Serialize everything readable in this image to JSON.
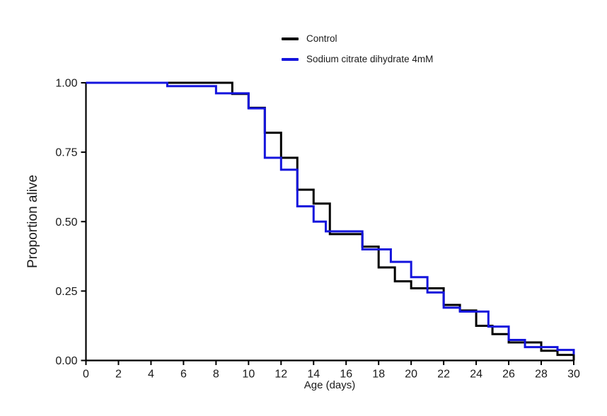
{
  "page": {
    "background": "#ffffff"
  },
  "legend": {
    "items": [
      {
        "label": "Control",
        "color": "#000000"
      },
      {
        "label": "Sodium citrate dihydrate 4mM",
        "color": "#1414dd"
      }
    ]
  },
  "chart_data": {
    "type": "line",
    "subtype": "kaplan-meier-step",
    "title": "",
    "xlabel": "Age (days)",
    "ylabel": "Proportion alive",
    "xlim": [
      0,
      30
    ],
    "ylim": [
      0,
      1
    ],
    "x_ticks": [
      0,
      2,
      4,
      6,
      8,
      10,
      12,
      14,
      16,
      18,
      20,
      22,
      24,
      26,
      28,
      30
    ],
    "y_ticks": [
      {
        "label": "1.00",
        "value": 1.0
      },
      {
        "label": "0.75",
        "value": 0.75
      },
      {
        "label": "0.50",
        "value": 0.5
      },
      {
        "label": "0.25",
        "value": 0.25
      },
      {
        "label": "0.00",
        "value": 0.0
      }
    ],
    "grid": false,
    "legend_position": "top-center",
    "series": [
      {
        "name": "Control",
        "color": "#000000",
        "stroke_width": 3,
        "points": [
          [
            0,
            1.0
          ],
          [
            9,
            0.96
          ],
          [
            10,
            0.91
          ],
          [
            11,
            0.82
          ],
          [
            12,
            0.73
          ],
          [
            13,
            0.615
          ],
          [
            14,
            0.565
          ],
          [
            15,
            0.455
          ],
          [
            17,
            0.41
          ],
          [
            18,
            0.335
          ],
          [
            19,
            0.285
          ],
          [
            20,
            0.26
          ],
          [
            22,
            0.2
          ],
          [
            23,
            0.18
          ],
          [
            24,
            0.125
          ],
          [
            25,
            0.095
          ],
          [
            26,
            0.065
          ],
          [
            28,
            0.035
          ],
          [
            29,
            0.02
          ],
          [
            30,
            0.0
          ]
        ]
      },
      {
        "name": "Sodium citrate dihydrate 4mM",
        "color": "#1414dd",
        "stroke_width": 3,
        "points": [
          [
            0,
            1.0
          ],
          [
            5,
            0.988
          ],
          [
            8,
            0.962
          ],
          [
            10,
            0.908
          ],
          [
            11,
            0.73
          ],
          [
            12,
            0.687
          ],
          [
            13,
            0.555
          ],
          [
            14,
            0.5
          ],
          [
            14.75,
            0.465
          ],
          [
            17,
            0.4
          ],
          [
            18.75,
            0.355
          ],
          [
            20,
            0.3
          ],
          [
            21,
            0.245
          ],
          [
            22,
            0.19
          ],
          [
            23,
            0.176
          ],
          [
            24.75,
            0.122
          ],
          [
            26,
            0.074
          ],
          [
            27,
            0.048
          ],
          [
            29,
            0.038
          ],
          [
            30,
            0.022
          ]
        ]
      }
    ]
  }
}
